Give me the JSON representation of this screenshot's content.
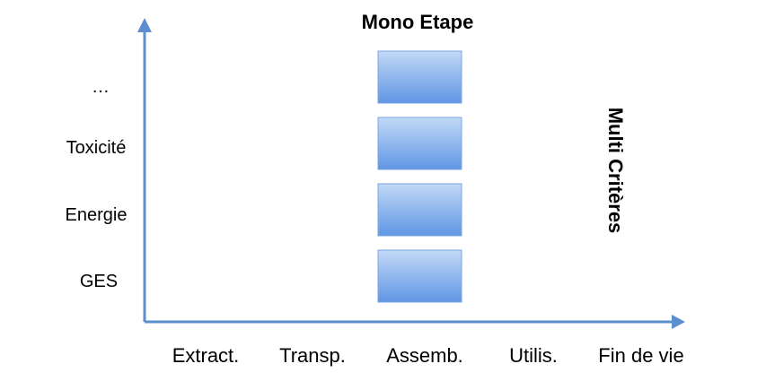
{
  "diagram": {
    "title": "Mono Etape",
    "side_title": "Multi Critères",
    "y_labels": [
      "…",
      "Toxicité",
      "Energie",
      "GES"
    ],
    "x_labels": [
      "Extract.",
      "Transp.",
      "Assemb.",
      "Utilis.",
      "Fin de vie"
    ],
    "highlighted_stage": "Assemb.",
    "colors": {
      "axis": "#5b8fd0",
      "box_top": "#c3d9f7",
      "box_bottom": "#5f96e4",
      "box_border": "#7aa6e0"
    }
  }
}
